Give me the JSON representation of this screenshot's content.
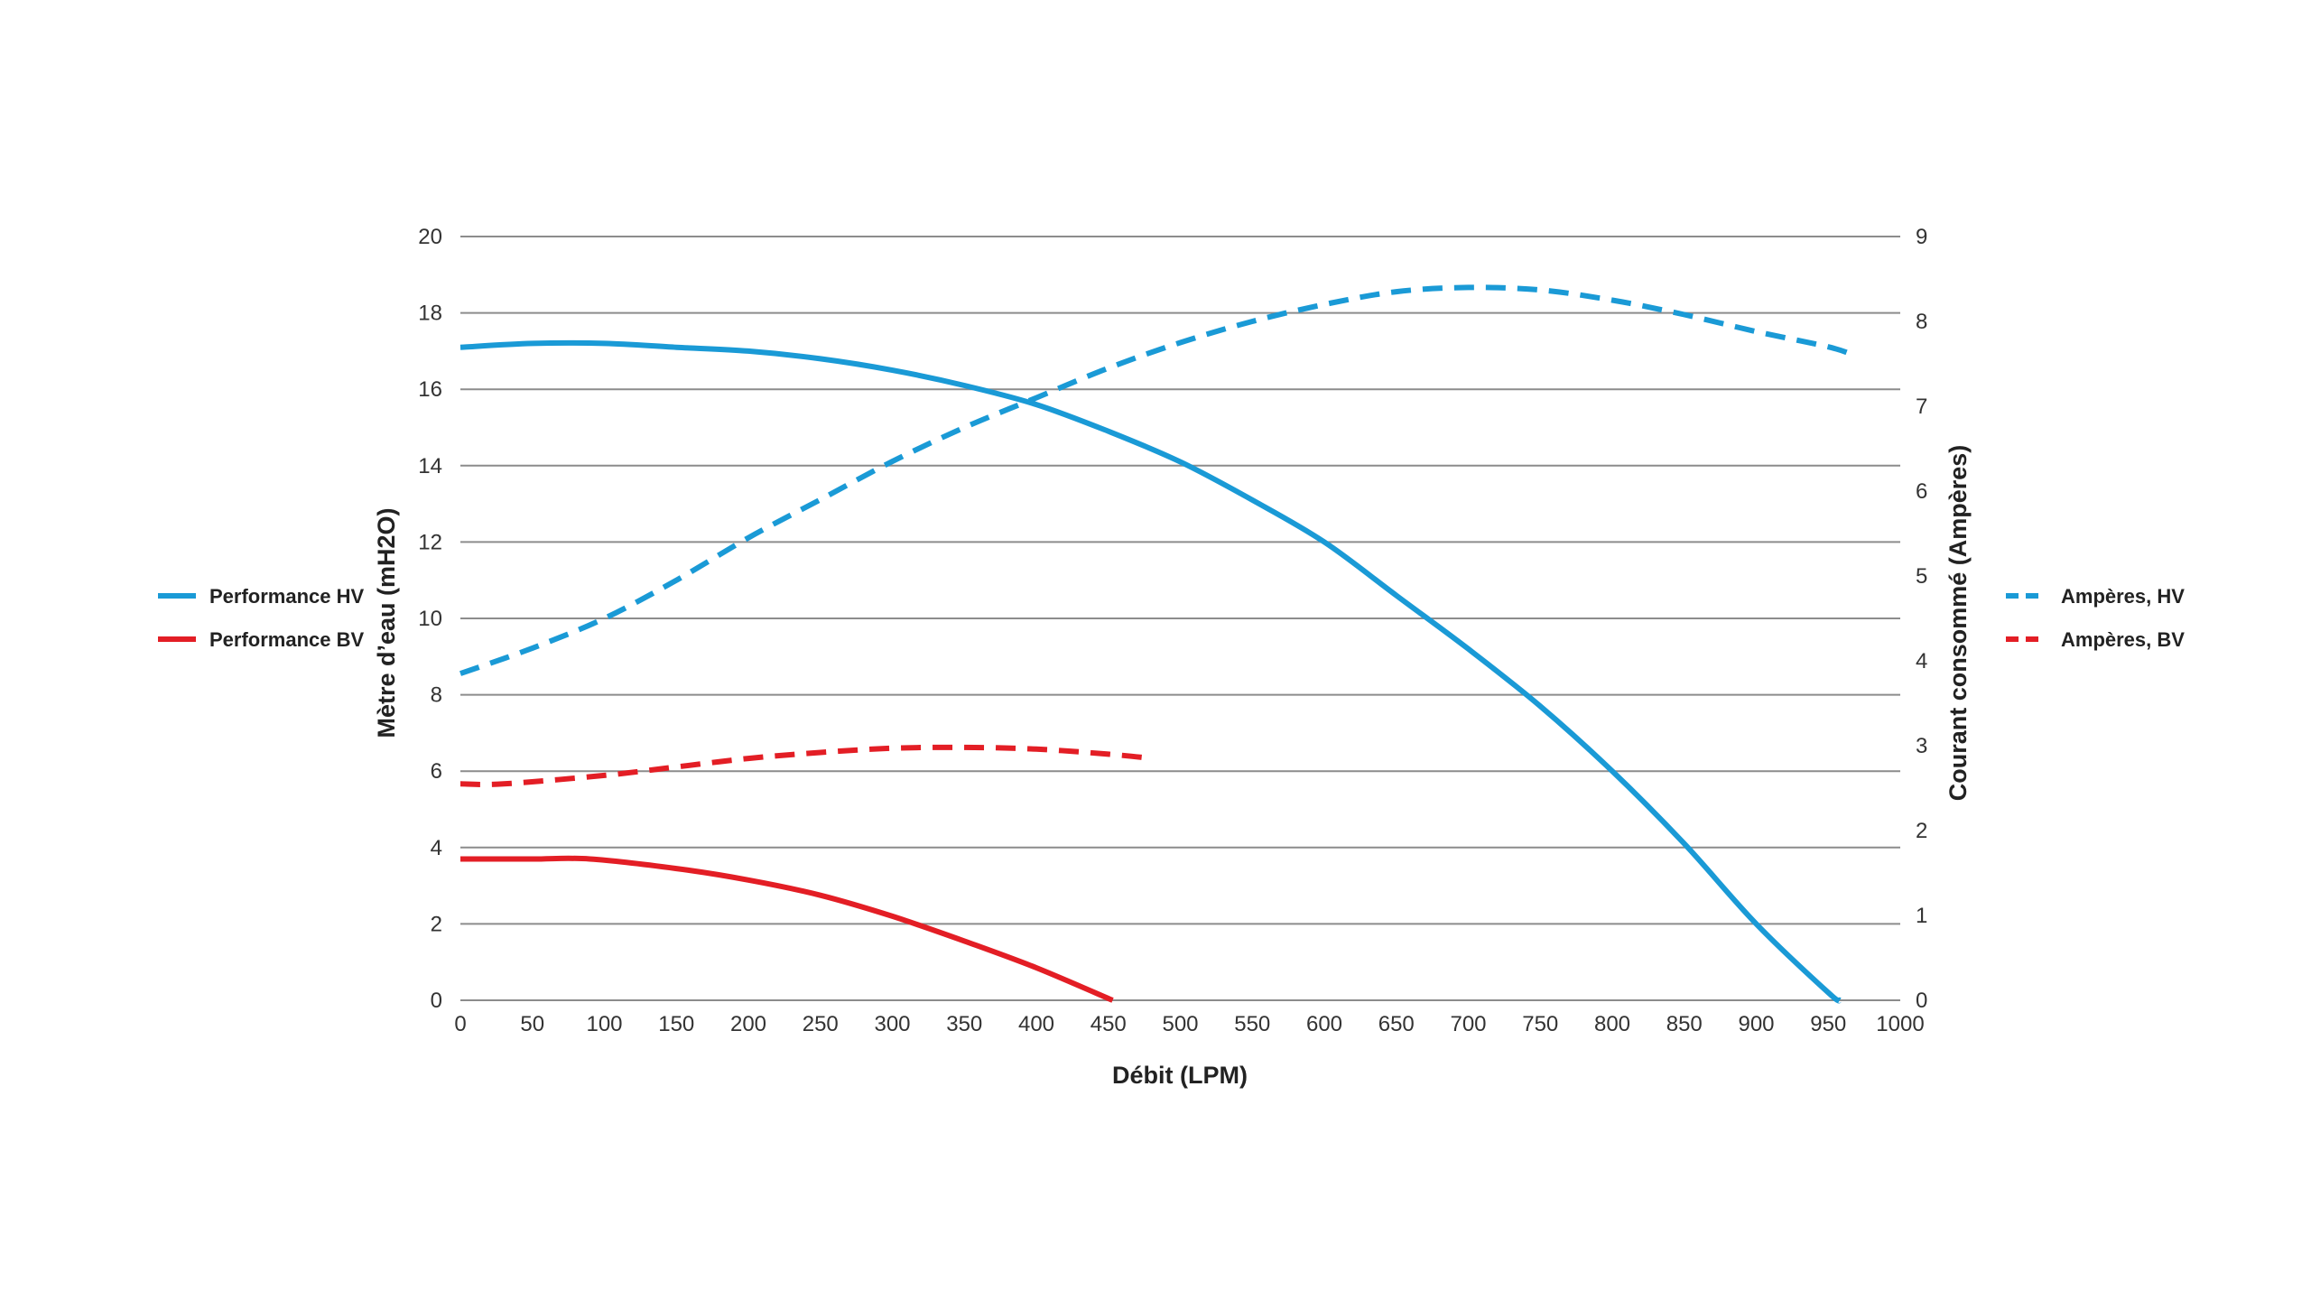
{
  "chart_data": {
    "type": "line",
    "title": "",
    "xlabel": "Débit (LPM)",
    "ylabel_left": "Mètre d’eau  (mH2O)",
    "ylabel_right": "Courant consommé (Ampères)",
    "xlim": [
      0,
      1000
    ],
    "ylim_left": [
      0,
      20
    ],
    "ylim_right": [
      0,
      9
    ],
    "x_ticks": [
      "0",
      "50",
      "100",
      "150",
      "200",
      "250",
      "300",
      "350",
      "400",
      "450",
      "500",
      "550",
      "600",
      "650",
      "700",
      "750",
      "800",
      "850",
      "900",
      "950",
      "1000"
    ],
    "y_left_ticks": [
      "0",
      "2",
      "4",
      "6",
      "8",
      "10",
      "12",
      "14",
      "16",
      "18",
      "20"
    ],
    "y_right_ticks": [
      "0",
      "1",
      "2",
      "3",
      "4",
      "5",
      "6",
      "7",
      "8",
      "9"
    ],
    "grid": true,
    "colors": {
      "hv": "#1a9ad6",
      "bv": "#e31e25"
    },
    "series": [
      {
        "name": "Performance HV",
        "axis": "left",
        "style": "solid",
        "color": "#1a9ad6",
        "x": [
          0,
          50,
          100,
          150,
          200,
          250,
          300,
          350,
          400,
          450,
          500,
          550,
          600,
          650,
          700,
          750,
          800,
          850,
          900,
          950,
          958
        ],
        "y": [
          17.1,
          17.2,
          17.2,
          17.1,
          17.0,
          16.8,
          16.5,
          16.1,
          15.6,
          14.9,
          14.1,
          13.1,
          12.0,
          10.6,
          9.2,
          7.7,
          6.0,
          4.1,
          2.0,
          0.2,
          0
        ]
      },
      {
        "name": "Performance BV",
        "axis": "left",
        "style": "solid",
        "color": "#e31e25",
        "x": [
          0,
          50,
          90,
          150,
          200,
          250,
          300,
          350,
          400,
          453
        ],
        "y": [
          3.7,
          3.7,
          3.7,
          3.45,
          3.15,
          2.75,
          2.2,
          1.55,
          0.85,
          0
        ]
      },
      {
        "name": "Ampères, HV",
        "axis": "right",
        "style": "dashed",
        "color": "#1a9ad6",
        "x": [
          0,
          50,
          100,
          150,
          200,
          250,
          300,
          350,
          400,
          450,
          500,
          550,
          600,
          650,
          700,
          750,
          800,
          850,
          900,
          950,
          968
        ],
        "y": [
          3.85,
          4.15,
          4.5,
          4.95,
          5.45,
          5.9,
          6.35,
          6.75,
          7.1,
          7.45,
          7.75,
          8.0,
          8.2,
          8.35,
          8.4,
          8.37,
          8.25,
          8.08,
          7.88,
          7.7,
          7.6
        ]
      },
      {
        "name": "Ampères, BV",
        "axis": "right",
        "style": "dashed",
        "color": "#e31e25",
        "x": [
          0,
          30,
          100,
          150,
          200,
          250,
          300,
          350,
          400,
          450,
          475
        ],
        "y": [
          2.55,
          2.55,
          2.65,
          2.75,
          2.85,
          2.92,
          2.97,
          2.98,
          2.96,
          2.9,
          2.86
        ]
      }
    ],
    "legend_left": [
      "Performance HV",
      "Performance BV"
    ],
    "legend_right": [
      "Ampères, HV",
      "Ampères, BV"
    ]
  }
}
